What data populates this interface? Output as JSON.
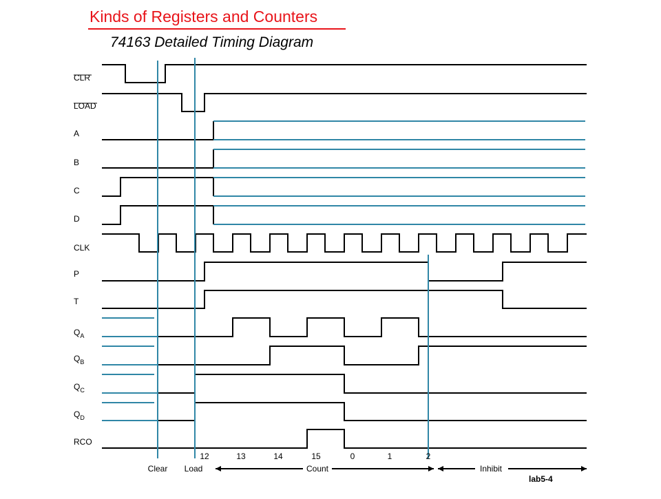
{
  "title": "Kinds of Registers and Counters",
  "subtitle": "74163 Detailed Timing Diagram",
  "signals": [
    {
      "name": "CLR"
    },
    {
      "name": "LOAD"
    },
    {
      "name": "A"
    },
    {
      "name": "B"
    },
    {
      "name": "C"
    },
    {
      "name": "D"
    },
    {
      "name": "CLK"
    },
    {
      "name": "P"
    },
    {
      "name": "T"
    },
    {
      "name": "Q",
      "subscript": "A"
    },
    {
      "name": "Q",
      "subscript": "B"
    },
    {
      "name": "Q",
      "subscript": "C"
    },
    {
      "name": "Q",
      "subscript": "D"
    },
    {
      "name": "RCO"
    }
  ],
  "counts": [
    12,
    13,
    14,
    15,
    0,
    1,
    2
  ],
  "phases": [
    "Clear",
    "Load",
    "Count",
    "Inhibit"
  ],
  "footer": "lab5-4"
}
